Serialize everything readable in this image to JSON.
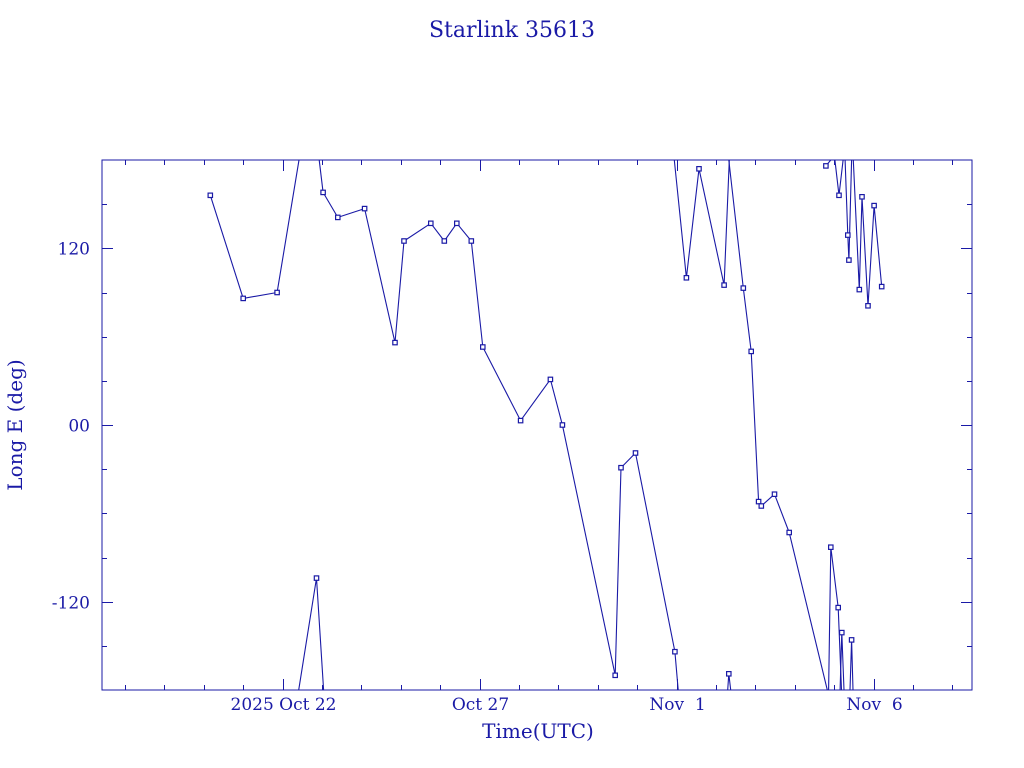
{
  "chart_data": {
    "type": "line",
    "title": "Starlink 35613",
    "xlabel": "Time(UTC)",
    "ylabel": "Long E (deg)",
    "x_unit": "days",
    "xlim": [
      "2025-10-17T10:00",
      "2025-11-08T12:00"
    ],
    "ylim": [
      -180,
      180
    ],
    "yticks": [
      {
        "value": 120,
        "label": "120"
      },
      {
        "value": 0,
        "label": "00"
      },
      {
        "value": -120,
        "label": "-120"
      }
    ],
    "xticks": [
      {
        "value": "2025-10-22T00:00",
        "label": "2025 Oct 22"
      },
      {
        "value": "2025-10-27T00:00",
        "label": "Oct 27"
      },
      {
        "value": "2025-11-01T00:00",
        "label": "Nov  1"
      },
      {
        "value": "2025-11-06T00:00",
        "label": "Nov  6"
      }
    ],
    "x_minor_tick_step_days": 1,
    "y_minor_tick_step": 30,
    "grid": false,
    "color": "#1a1aa6",
    "series": [
      {
        "points": [
          {
            "x": "2025-10-20T04:00",
            "y": 156
          },
          {
            "x": "2025-10-21T00:00",
            "y": 86
          },
          {
            "x": "2025-10-21T20:40",
            "y": 90
          },
          {
            "x": "2025-10-22T10:00",
            "y": 180
          },
          {
            "x": "2025-10-22T22:20",
            "y": 180
          },
          {
            "x": "2025-10-23T00:40",
            "y": 158
          },
          {
            "x": "2025-10-23T09:40",
            "y": 141
          },
          {
            "x": "2025-10-24T02:00",
            "y": 147
          },
          {
            "x": "2025-10-24T20:30",
            "y": 56
          },
          {
            "x": "2025-10-25T02:00",
            "y": 125
          },
          {
            "x": "2025-10-25T18:20",
            "y": 137
          },
          {
            "x": "2025-10-26T02:30",
            "y": 125
          },
          {
            "x": "2025-10-26T10:10",
            "y": 137
          },
          {
            "x": "2025-10-26T19:00",
            "y": 125
          },
          {
            "x": "2025-10-27T02:00",
            "y": 53
          },
          {
            "x": "2025-10-28T01:00",
            "y": 3
          },
          {
            "x": "2025-10-28T19:10",
            "y": 31
          },
          {
            "x": "2025-10-29T02:30",
            "y": 0
          },
          {
            "x": "2025-10-30T10:40",
            "y": -170
          },
          {
            "x": "2025-10-30T14:10",
            "y": -29
          },
          {
            "x": "2025-10-30T23:00",
            "y": -19
          },
          {
            "x": "2025-10-31T23:00",
            "y": -154
          },
          {
            "x": "2025-11-01T01:00",
            "y": -180
          }
        ]
      },
      {
        "points": [
          {
            "x": "2025-10-22T09:50",
            "y": -180
          },
          {
            "x": "2025-10-22T20:40",
            "y": -104
          },
          {
            "x": "2025-10-23T01:00",
            "y": -180
          }
        ]
      },
      {
        "points": [
          {
            "x": "2025-10-31T22:40",
            "y": 180
          },
          {
            "x": "2025-11-01T06:00",
            "y": 100
          },
          {
            "x": "2025-11-01T13:40",
            "y": 174
          },
          {
            "x": "2025-11-02T05:00",
            "y": 95
          },
          {
            "x": "2025-11-02T08:10",
            "y": 180
          }
        ]
      },
      {
        "points": [
          {
            "x": "2025-11-02T07:10",
            "y": -180
          },
          {
            "x": "2025-11-02T07:50",
            "y": -169
          },
          {
            "x": "2025-11-02T09:00",
            "y": -180
          }
        ]
      },
      {
        "points": [
          {
            "x": "2025-11-02T07:50",
            "y": 180
          },
          {
            "x": "2025-11-02T16:40",
            "y": 93
          },
          {
            "x": "2025-11-02T21:30",
            "y": 50
          },
          {
            "x": "2025-11-03T02:00",
            "y": -52
          },
          {
            "x": "2025-11-03T03:40",
            "y": -55
          },
          {
            "x": "2025-11-03T11:40",
            "y": -47
          },
          {
            "x": "2025-11-03T20:40",
            "y": -73
          },
          {
            "x": "2025-11-04T19:50",
            "y": -180
          }
        ]
      },
      {
        "points": [
          {
            "x": "2025-11-04T19:00",
            "y": 176
          },
          {
            "x": "2025-11-04T22:00",
            "y": 180
          }
        ]
      },
      {
        "points": [
          {
            "x": "2025-11-04T20:40",
            "y": -180
          },
          {
            "x": "2025-11-04T22:00",
            "y": -83
          },
          {
            "x": "2025-11-05T02:30",
            "y": -124
          },
          {
            "x": "2025-11-05T04:30",
            "y": -180
          }
        ]
      },
      {
        "points": [
          {
            "x": "2025-11-05T00:30",
            "y": 180
          },
          {
            "x": "2025-11-05T03:00",
            "y": 156
          },
          {
            "x": "2025-11-05T05:30",
            "y": 180
          }
        ]
      },
      {
        "points": [
          {
            "x": "2025-11-05T03:40",
            "y": -180
          },
          {
            "x": "2025-11-05T04:40",
            "y": -141
          },
          {
            "x": "2025-11-05T06:00",
            "y": -180
          }
        ]
      },
      {
        "points": [
          {
            "x": "2025-11-05T06:40",
            "y": 180
          },
          {
            "x": "2025-11-05T08:20",
            "y": 129
          },
          {
            "x": "2025-11-05T09:00",
            "y": 112
          },
          {
            "x": "2025-11-05T10:40",
            "y": 180
          }
        ]
      },
      {
        "points": [
          {
            "x": "2025-11-05T09:40",
            "y": -180
          },
          {
            "x": "2025-11-05T10:40",
            "y": -146
          },
          {
            "x": "2025-11-05T11:30",
            "y": -180
          }
        ]
      },
      {
        "points": [
          {
            "x": "2025-11-05T11:40",
            "y": 180
          },
          {
            "x": "2025-11-05T15:20",
            "y": 92
          },
          {
            "x": "2025-11-05T17:00",
            "y": 155
          },
          {
            "x": "2025-11-05T20:40",
            "y": 81
          },
          {
            "x": "2025-11-06T00:20",
            "y": 149
          },
          {
            "x": "2025-11-06T05:00",
            "y": 94
          }
        ]
      }
    ]
  }
}
